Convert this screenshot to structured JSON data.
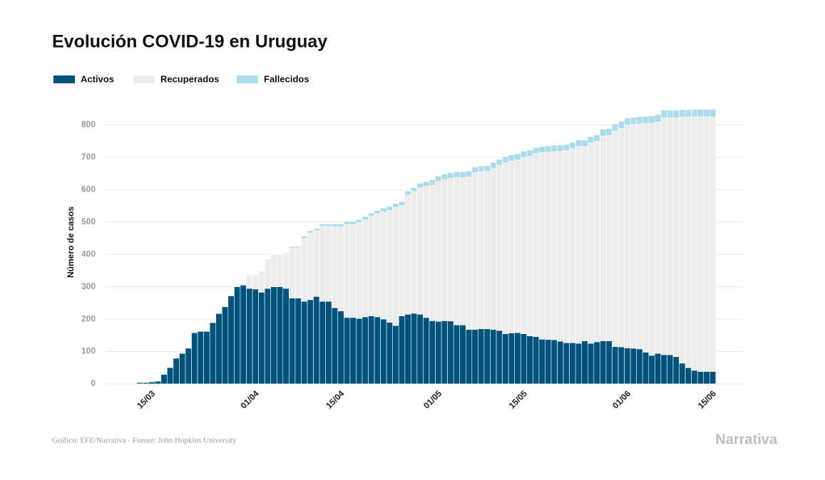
{
  "chart_data": {
    "type": "stacked_bar",
    "title": "Evolución COVID-19 en Uruguay",
    "ylabel": "Número de casos",
    "source": "Gráfico: EFE/Narrativa - Fuente: John Hopkins University",
    "logo": "Narrativa",
    "grid": true,
    "ylim": [
      0,
      880
    ],
    "yticks": [
      0,
      100,
      200,
      300,
      400,
      500,
      600,
      700,
      800
    ],
    "categories": [
      null,
      null,
      "15/03",
      null,
      null,
      null,
      null,
      null,
      null,
      null,
      null,
      null,
      null,
      null,
      null,
      null,
      null,
      null,
      null,
      "01/04",
      null,
      null,
      null,
      null,
      null,
      null,
      null,
      null,
      null,
      null,
      null,
      null,
      null,
      "15/04",
      null,
      null,
      null,
      null,
      null,
      null,
      null,
      null,
      null,
      null,
      null,
      null,
      null,
      null,
      null,
      "01/05",
      null,
      null,
      null,
      null,
      null,
      null,
      null,
      null,
      null,
      null,
      null,
      null,
      null,
      "15/05",
      null,
      null,
      null,
      null,
      null,
      null,
      null,
      null,
      null,
      null,
      null,
      null,
      null,
      null,
      null,
      null,
      "01/06",
      null,
      null,
      null,
      null,
      null,
      null,
      null,
      null,
      null,
      null,
      null,
      null,
      null,
      "15/06"
    ],
    "series": [
      {
        "name": "Activos",
        "color": "#01537c",
        "values": [
          4,
          4,
          6,
          8,
          29,
          50,
          79,
          94,
          110,
          158,
          162,
          162,
          189,
          217,
          238,
          272,
          300,
          305,
          295,
          293,
          283,
          295,
          300,
          300,
          295,
          265,
          265,
          255,
          260,
          270,
          255,
          255,
          235,
          225,
          205,
          205,
          202,
          207,
          210,
          207,
          200,
          190,
          180,
          210,
          215,
          218,
          215,
          205,
          195,
          193,
          195,
          194,
          182,
          182,
          168,
          168,
          170,
          170,
          168,
          165,
          155,
          157,
          158,
          155,
          148,
          146,
          138,
          137,
          136,
          132,
          127,
          127,
          125,
          133,
          125,
          130,
          133,
          133,
          115,
          114,
          111,
          110,
          108,
          98,
          88,
          94,
          90,
          90,
          84,
          64,
          50,
          42,
          38,
          38,
          38
        ]
      },
      {
        "name": "Recuperados",
        "color": "#ececec",
        "values": [
          0,
          0,
          0,
          0,
          0,
          0,
          0,
          0,
          0,
          0,
          0,
          0,
          0,
          0,
          0,
          1,
          3,
          4,
          42,
          44,
          66,
          90,
          99,
          99,
          109,
          155,
          155,
          194,
          206,
          203,
          232,
          231,
          250,
          260,
          287,
          287,
          296,
          300,
          308,
          318,
          331,
          346,
          365,
          341,
          369,
          376,
          390,
          405,
          418,
          432,
          436,
          441,
          456,
          455,
          471,
          484,
          485,
          486,
          497,
          510,
          528,
          531,
          534,
          545,
          555,
          565,
          576,
          579,
          581,
          586,
          593,
          599,
          608,
          600,
          619,
          619,
          632,
          634,
          666,
          675,
          688,
          691,
          695,
          706,
          717,
          715,
          732,
          732,
          738,
          760,
          774,
          783,
          787,
          787,
          787
        ]
      },
      {
        "name": "Fallecidos",
        "color": "#acdcec",
        "values": [
          0,
          0,
          0,
          0,
          0,
          0,
          0,
          0,
          0,
          0,
          0,
          0,
          0,
          0,
          0,
          1,
          1,
          1,
          1,
          1,
          1,
          1,
          1,
          1,
          2,
          4,
          4,
          7,
          7,
          7,
          7,
          8,
          9,
          9,
          10,
          10,
          10,
          10,
          10,
          10,
          12,
          12,
          12,
          12,
          12,
          12,
          15,
          15,
          17,
          17,
          17,
          17,
          17,
          18,
          18,
          18,
          18,
          18,
          19,
          19,
          19,
          19,
          19,
          19,
          19,
          19,
          19,
          19,
          20,
          20,
          20,
          20,
          20,
          20,
          20,
          20,
          22,
          22,
          22,
          22,
          22,
          22,
          22,
          22,
          23,
          23,
          23,
          23,
          23,
          23,
          23,
          23,
          23,
          23,
          23
        ]
      }
    ]
  }
}
